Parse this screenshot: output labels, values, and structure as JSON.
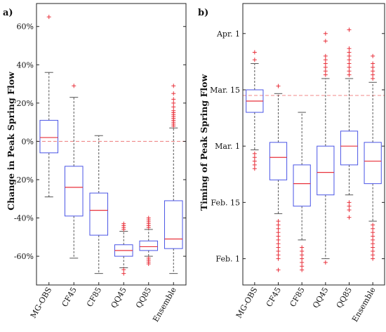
{
  "figure": {
    "colors": {
      "box": "#4a55e6",
      "median": "#e8323c",
      "outlier": "#e8323c",
      "whisker": "#555555",
      "reference": "#f08a8a",
      "axis": "#222222"
    }
  },
  "chart_data": [
    {
      "type": "box",
      "panel_label": "a)",
      "title": "",
      "xlabel": "",
      "ylabel": "Change in Peak Spring Flow",
      "ylim": [
        -75,
        72
      ],
      "yticks": [
        60,
        40,
        20,
        0,
        -20,
        -40,
        -60
      ],
      "ytick_labels": [
        "60%",
        "40%",
        "20%",
        "0%",
        "-20%",
        "-40%",
        "-60%"
      ],
      "reference_line": 0,
      "grid": false,
      "categories": [
        "MG-OBS",
        "CF45",
        "CF85",
        "QQ45",
        "QQ85",
        "Ensemble"
      ],
      "boxes": [
        {
          "name": "MG-OBS",
          "whisker_low": -29,
          "q1": -6,
          "median": 2,
          "q3": 11,
          "whisker_high": 36,
          "outliers": [
            65
          ]
        },
        {
          "name": "CF45",
          "whisker_low": -61,
          "q1": -39,
          "median": -24,
          "q3": -13,
          "whisker_high": 23,
          "outliers": [
            29
          ]
        },
        {
          "name": "CF85",
          "whisker_low": -69,
          "q1": -49,
          "median": -36,
          "q3": -27,
          "whisker_high": 3,
          "outliers": []
        },
        {
          "name": "QQ45",
          "whisker_low": -66,
          "q1": -60,
          "median": -57,
          "q3": -54,
          "whisker_high": -47,
          "outliers": [
            -43,
            -44,
            -45,
            -46,
            -67,
            -69
          ]
        },
        {
          "name": "QQ85",
          "whisker_low": -60,
          "q1": -57,
          "median": -55,
          "q3": -52,
          "whisker_high": -46,
          "outliers": [
            -40,
            -41,
            -42,
            -43,
            -44,
            -45,
            -61,
            -62,
            -63,
            -64
          ]
        },
        {
          "name": "Ensemble",
          "whisker_low": -69,
          "q1": -56,
          "median": -51,
          "q3": -31,
          "whisker_high": 7,
          "outliers": [
            8,
            9,
            10,
            11,
            12,
            13,
            14,
            15,
            16,
            18,
            20,
            22,
            25,
            29
          ]
        }
      ]
    },
    {
      "type": "box",
      "panel_label": "b)",
      "title": "",
      "xlabel": "",
      "ylabel": "Timing of Peak Spring Flow",
      "ylim": [
        -7,
        68
      ],
      "yticks": [
        60,
        45,
        30,
        15,
        0
      ],
      "ytick_labels": [
        "Apr. 1",
        "Mar. 15",
        "Mar. 1",
        "Feb. 15",
        "Feb. 1"
      ],
      "reference_line": 43.5,
      "grid": false,
      "categories": [
        "MG-OBS",
        "CF45",
        "CF85",
        "QQ45",
        "QQ85",
        "Ensemble"
      ],
      "boxes": [
        {
          "name": "MG-OBS",
          "whisker_low": 29,
          "q1": 39,
          "median": 42,
          "q3": 45,
          "whisker_high": 52,
          "outliers": [
            24,
            25,
            26,
            27,
            28,
            53,
            55
          ]
        },
        {
          "name": "CF45",
          "whisker_low": 12,
          "q1": 21,
          "median": 27,
          "q3": 31,
          "whisker_high": 44,
          "outliers": [
            -3,
            0,
            1,
            2,
            3,
            4,
            5,
            6,
            7,
            8,
            9,
            10,
            46
          ]
        },
        {
          "name": "CF85",
          "whisker_low": 5,
          "q1": 14,
          "median": 20,
          "q3": 25,
          "whisker_high": 39,
          "outliers": [
            -3,
            -2,
            -1,
            0,
            1,
            2,
            3
          ]
        },
        {
          "name": "QQ45",
          "whisker_low": 0,
          "q1": 17,
          "median": 23,
          "q3": 30,
          "whisker_high": 48,
          "outliers": [
            -1,
            49,
            50,
            51,
            52,
            53,
            54,
            58,
            60
          ]
        },
        {
          "name": "QQ85",
          "whisker_low": 17,
          "q1": 25,
          "median": 30,
          "q3": 34,
          "whisker_high": 48,
          "outliers": [
            11,
            13,
            14,
            15,
            49,
            50,
            51,
            52,
            53,
            54,
            55,
            56,
            61
          ]
        },
        {
          "name": "Ensemble",
          "whisker_low": 10,
          "q1": 20,
          "median": 26,
          "q3": 31,
          "whisker_high": 47,
          "outliers": [
            0,
            1,
            2,
            3,
            4,
            5,
            6,
            7,
            8,
            9,
            48,
            49,
            50,
            51,
            52,
            54
          ]
        }
      ]
    }
  ]
}
